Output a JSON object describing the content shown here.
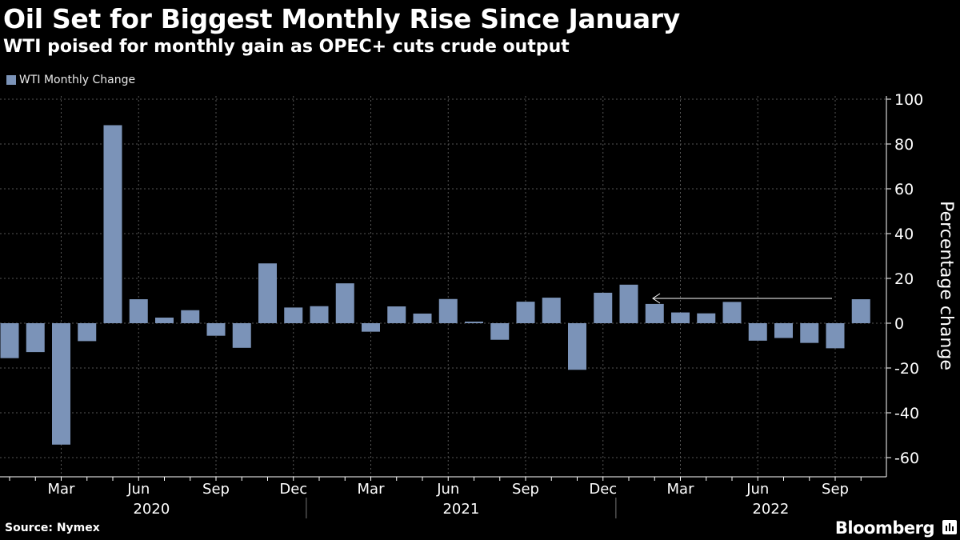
{
  "chart_data": {
    "type": "bar",
    "title": "Oil Set for Biggest Monthly Rise Since January",
    "subtitle": "WTI poised for monthly gain as OPEC+ cuts crude output",
    "ylabel": "Percentage change",
    "ylim": [
      -65,
      105
    ],
    "yticks": [
      100,
      80,
      60,
      40,
      20,
      0,
      -20,
      -40,
      -60
    ],
    "grid": true,
    "legend_position": "top-left",
    "x_tick_labels": [
      "Mar",
      "Jun",
      "Sep",
      "Dec",
      "Mar",
      "Jun",
      "Sep",
      "Dec",
      "Mar",
      "Jun",
      "Sep"
    ],
    "year_labels": [
      "2020",
      "2021",
      "2022"
    ],
    "categories": [
      "2020-01",
      "2020-02",
      "2020-03",
      "2020-04",
      "2020-05",
      "2020-06",
      "2020-07",
      "2020-08",
      "2020-09",
      "2020-10",
      "2020-11",
      "2020-12",
      "2021-01",
      "2021-02",
      "2021-03",
      "2021-04",
      "2021-05",
      "2021-06",
      "2021-07",
      "2021-08",
      "2021-09",
      "2021-10",
      "2021-11",
      "2021-12",
      "2022-01",
      "2022-02",
      "2022-03",
      "2022-04",
      "2022-05",
      "2022-06",
      "2022-07",
      "2022-08",
      "2022-09",
      "2022-10"
    ],
    "series": [
      {
        "name": "WTI Monthly Change",
        "color": "#7b93b8",
        "values": [
          -15.6,
          -12.9,
          -54.2,
          -8.0,
          88.4,
          10.7,
          2.5,
          5.8,
          -5.6,
          -11.0,
          26.7,
          7.0,
          7.6,
          17.8,
          -3.8,
          7.5,
          4.3,
          10.8,
          0.7,
          -7.4,
          9.6,
          11.4,
          -20.8,
          13.6,
          17.2,
          8.6,
          4.8,
          4.4,
          9.5,
          -7.8,
          -6.6,
          -8.8,
          -11.2,
          10.7
        ]
      }
    ]
  },
  "source": "Source: Nymex",
  "brand": "Bloomberg"
}
